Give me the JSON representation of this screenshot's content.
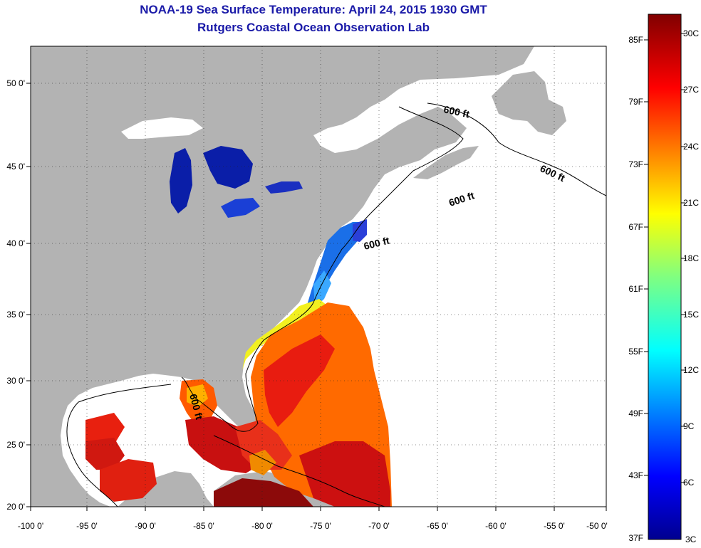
{
  "title": "NOAA-19 Sea Surface Temperature:  April 24, 2015 1930 GMT",
  "subtitle": "Rutgers Coastal Ocean Observation Lab",
  "lon_labels": [
    "-100 0'",
    "-95 0'",
    "-90 0'",
    "-85 0'",
    "-80 0'",
    "-75 0'",
    "-70 0'",
    "-65 0'",
    "-60 0'",
    "-55 0'",
    "-50 0'"
  ],
  "lat_labels": [
    "50 0'",
    "45 0'",
    "40 0'",
    "35 0'",
    "30 0'",
    "25 0'",
    "20 0'"
  ],
  "depth_labels": [
    "600 ft",
    "600 ft",
    "600 ft",
    "600 ft",
    "600 ft"
  ],
  "colorbar": {
    "fahrenheit": [
      "85F",
      "79F",
      "73F",
      "67F",
      "61F",
      "55F",
      "49F",
      "43F",
      "37F"
    ],
    "celsius": [
      "30C",
      "27C",
      "24C",
      "21C",
      "18C",
      "15C",
      "12C",
      "9C",
      "6C",
      "3C"
    ]
  },
  "colors": {
    "land": "#b3b3b3",
    "title": "#1a1aa8",
    "cold": "#00008f",
    "warm": "#800000"
  }
}
